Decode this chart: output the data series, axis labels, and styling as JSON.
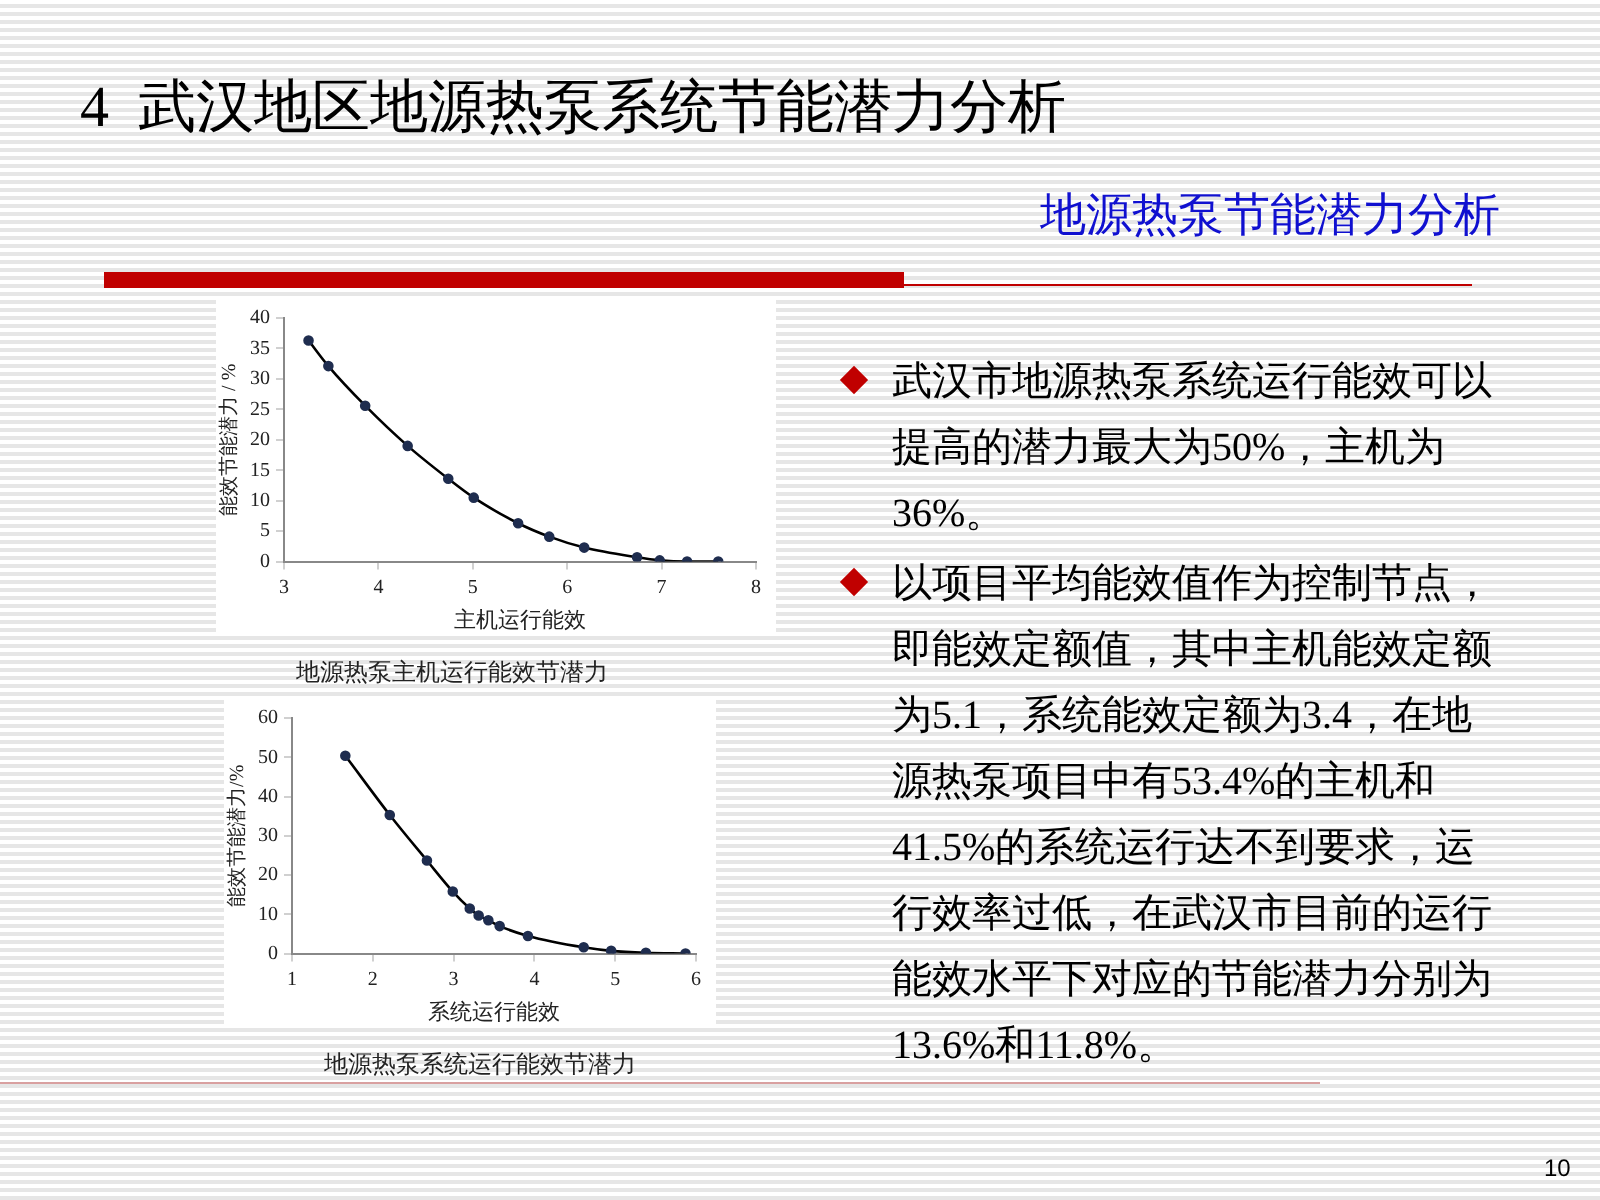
{
  "chart_data": [
    {
      "type": "other",
      "title": "4  武汉地区地源热泵系统节能潜力分析",
      "subtitle": "地源热泵节能潜力分析"
    },
    {
      "type": "line",
      "xlabel": "主机运行能效",
      "ylabel": "能效节能潜力 / %",
      "x": [
        3.26,
        3.47,
        3.86,
        4.31,
        4.74,
        5.01,
        5.48,
        5.81,
        6.18,
        6.74,
        6.98,
        7.27,
        7.6
      ],
      "values": [
        36.3,
        32.1,
        25.6,
        19.0,
        13.6,
        10.5,
        6.3,
        4.1,
        2.3,
        0.7,
        0.2,
        0,
        0
      ],
      "color": "#1f2d4f",
      "xlim": [
        3,
        8
      ],
      "xticks": [
        3,
        4,
        5,
        6,
        7,
        8
      ],
      "ylim": [
        0,
        40
      ],
      "yticks": [
        0,
        5,
        10,
        15,
        20,
        25,
        30,
        35,
        40
      ],
      "marker": "circle",
      "grid": false,
      "legend": false,
      "annotations": [
        "地源热泵主机运行能效节潜力"
      ]
    },
    {
      "type": "line",
      "xlabel": "系统运行能效",
      "ylabel": "能效节能潜力/%",
      "x": [
        1.66,
        2.21,
        2.67,
        2.99,
        3.2,
        3.31,
        3.43,
        3.57,
        3.92,
        4.61,
        4.95,
        5.38,
        5.87
      ],
      "values": [
        50.4,
        35.3,
        23.7,
        15.8,
        11.5,
        9.7,
        8.5,
        7.0,
        4.5,
        1.6,
        0.7,
        0.2,
        0
      ],
      "color": "#1f2d4f",
      "xlim": [
        1,
        6
      ],
      "xticks": [
        1,
        2,
        3,
        4,
        5,
        6
      ],
      "ylim": [
        0,
        60
      ],
      "yticks": [
        0,
        10,
        20,
        30,
        40,
        50,
        60
      ],
      "marker": "circle",
      "grid": false,
      "legend": false,
      "annotations": [
        "地源热泵系统运行能效节潜力"
      ]
    },
    {
      "type": "other",
      "annotations": [
        "武汉市地源热泵系统运行能效可以提高的潜力最大为50%，主机为36%。",
        "以项目平均能效值作为控制节点，即能效定额值，其中主机能效定额为5.1，系统能效定额为3.4，在地源热泵项目中有53.4%的主机和41.5%的系统运行达不到要求，运行效率过低，在武汉市目前的运行能效水平下对应的节能潜力分别为13.6%和11.8%。",
        "10"
      ]
    }
  ]
}
